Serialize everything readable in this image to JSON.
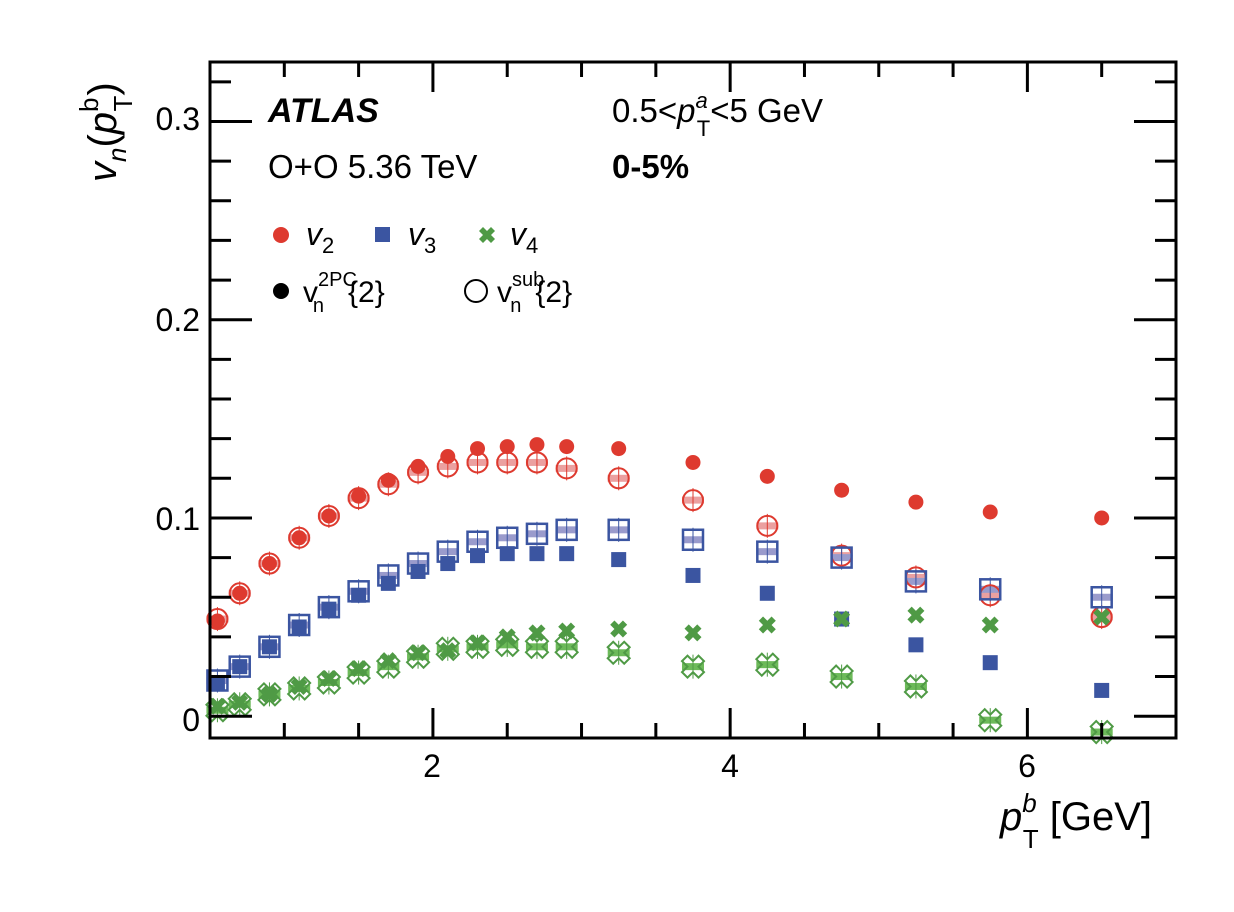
{
  "chart_data": {
    "type": "scatter",
    "title": "",
    "xlabel": {
      "var": "p",
      "sup": "b",
      "sub": "T",
      "unit": " [GeV]"
    },
    "ylabel": {
      "var": "v",
      "sub_n": "n",
      "open": "(",
      "pvar": "p",
      "sup": "b",
      "sub": "T",
      "close": ")"
    },
    "xlim": [
      0.5,
      7.0
    ],
    "ylim": [
      -0.011,
      0.33
    ],
    "x_ticks": [
      2,
      4,
      6
    ],
    "x_tick_labels": [
      "2",
      "4",
      "6"
    ],
    "y_ticks": [
      0,
      0.1,
      0.2,
      0.3
    ],
    "y_tick_labels": [
      "0",
      "0.1",
      "0.2",
      "0.3"
    ],
    "grid": false,
    "annotations": {
      "experiment": "ATLAS",
      "system": "O+O  5.36 TeV",
      "pt_range": {
        "pre": "0.5<",
        "var": "p",
        "sup": "a",
        "sub": "T",
        "post": "<5 GeV"
      },
      "centrality": "0-5%"
    },
    "legend": {
      "placement": "top-left",
      "harmonics": [
        {
          "var": "v",
          "sub": "2",
          "color": "#de3a2f",
          "marker": "circle"
        },
        {
          "var": "v",
          "sub": "3",
          "color": "#3b55a1",
          "marker": "square"
        },
        {
          "var": "v",
          "sub": "4",
          "color": "#4f9a45",
          "marker": "cross"
        }
      ],
      "methods": [
        {
          "var": "v",
          "sub": "n",
          "sup": "2PC",
          "tail": "{2}",
          "style": "filled"
        },
        {
          "var": "v",
          "sub": "n",
          "sup": "sub",
          "tail": "{2}",
          "style": "open"
        }
      ]
    },
    "x": [
      0.55,
      0.7,
      0.9,
      1.1,
      1.3,
      1.5,
      1.7,
      1.9,
      2.1,
      2.3,
      2.5,
      2.7,
      2.9,
      3.25,
      3.75,
      4.25,
      4.75,
      5.25,
      5.75,
      6.5
    ],
    "series": [
      {
        "name": "v2 2PC",
        "harmonic": "v2",
        "style": "filled",
        "color": "#de3a2f",
        "marker": "circle",
        "values": [
          0.048,
          0.062,
          0.077,
          0.09,
          0.101,
          0.111,
          0.119,
          0.126,
          0.131,
          0.135,
          0.136,
          0.137,
          0.136,
          0.135,
          0.128,
          0.121,
          0.114,
          0.108,
          0.103,
          0.1
        ]
      },
      {
        "name": "v2 sub",
        "harmonic": "v2",
        "style": "open",
        "color": "#de3a2f",
        "syst_color": "#eba0a0",
        "marker": "circle",
        "values": [
          0.049,
          0.062,
          0.077,
          0.09,
          0.101,
          0.11,
          0.117,
          0.123,
          0.126,
          0.128,
          0.128,
          0.128,
          0.125,
          0.12,
          0.109,
          0.096,
          0.081,
          0.07,
          0.061,
          0.05
        ]
      },
      {
        "name": "v3 2PC",
        "harmonic": "v3",
        "style": "filled",
        "color": "#3b55a1",
        "marker": "square",
        "values": [
          0.017,
          0.025,
          0.035,
          0.045,
          0.054,
          0.061,
          0.067,
          0.073,
          0.077,
          0.081,
          0.082,
          0.082,
          0.082,
          0.079,
          0.071,
          0.062,
          0.049,
          0.036,
          0.027,
          0.013
        ]
      },
      {
        "name": "v3 sub",
        "harmonic": "v3",
        "style": "open",
        "color": "#3b55a1",
        "syst_color": "#9a9bcc",
        "marker": "square",
        "values": [
          0.018,
          0.025,
          0.035,
          0.046,
          0.055,
          0.063,
          0.071,
          0.077,
          0.083,
          0.088,
          0.09,
          0.092,
          0.094,
          0.094,
          0.089,
          0.083,
          0.08,
          0.068,
          0.064,
          0.06
        ]
      },
      {
        "name": "v4 2PC",
        "harmonic": "v4",
        "style": "filled",
        "color": "#4f9a45",
        "marker": "cross",
        "values": [
          0.005,
          0.007,
          0.011,
          0.015,
          0.019,
          0.024,
          0.028,
          0.032,
          0.033,
          0.037,
          0.04,
          0.042,
          0.043,
          0.044,
          0.042,
          0.046,
          0.049,
          0.051,
          0.046,
          0.05
        ]
      },
      {
        "name": "v4 sub",
        "harmonic": "v4",
        "style": "open",
        "color": "#4f9a45",
        "syst_color": "#6dba5a",
        "marker": "cross",
        "values": [
          0.003,
          0.006,
          0.011,
          0.014,
          0.017,
          0.022,
          0.025,
          0.03,
          0.034,
          0.035,
          0.036,
          0.035,
          0.035,
          0.032,
          0.025,
          0.026,
          0.02,
          0.015,
          -0.002,
          -0.008
        ]
      }
    ]
  }
}
